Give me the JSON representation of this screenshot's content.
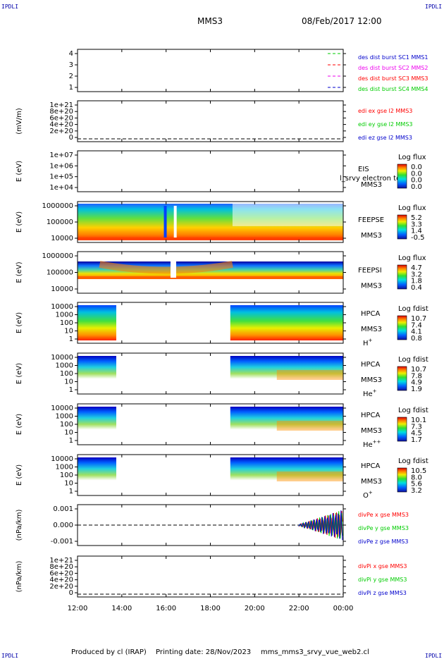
{
  "header": {
    "corner_left": "IPDLI",
    "corner_right": "IPDLI",
    "spacecraft": "MMS3",
    "datetime": "08/Feb/2017 12:00"
  },
  "footer": {
    "produced_by": "Produced by cl (IRAP)",
    "printing_date": "Printing date: 28/Nov/2023",
    "filename": "mms_mms3_srvy_vue_web2.cl",
    "corner_left": "IPDLI",
    "corner_right": "IPDLI"
  },
  "colors": {
    "red": "#ff0000",
    "green": "#00cc00",
    "blue": "#0000cc",
    "magenta": "#ee00ee",
    "orange": "#ff8800"
  },
  "chart_data": {
    "type": "multi-panel time series / spectrogram stack",
    "x": {
      "range": [
        "12:00",
        "00:00"
      ],
      "tick_labels": [
        "12:00",
        "14:00",
        "16:00",
        "18:00",
        "20:00",
        "22:00",
        "00:00"
      ]
    },
    "panels": [
      {
        "type": "line",
        "ylabel": "",
        "ytick_labels": [
          "4",
          "3",
          "2",
          "1"
        ],
        "legend": [
          {
            "label": "des dist burst SC1 MMS1",
            "color": "#0000cc"
          },
          {
            "label": "des dist burst SC2 MMS2",
            "color": "#ee00ee"
          },
          {
            "label": "des dist burst SC3 MMS3",
            "color": "#ff0000"
          },
          {
            "label": "des dist burst SC4 MMS4",
            "color": "#00cc00"
          }
        ]
      },
      {
        "type": "line",
        "ylabel": "(mV/m)",
        "ytick_labels": [
          "1e+21",
          "8e+20",
          "6e+20",
          "4e+20",
          "2e+20",
          "0"
        ],
        "legend": [
          {
            "label": "edi ex gse l2 MMS3",
            "color": "#ff0000"
          },
          {
            "label": "edi ey gse l2 MMS3",
            "color": "#00cc00"
          },
          {
            "label": "edi ez gse l2 MMS3",
            "color": "#0000cc"
          }
        ]
      },
      {
        "type": "heatmap",
        "ylabel": "E (eV)",
        "ytick_labels": [
          "1e+07",
          "1e+06",
          "1e+05",
          "1e+04"
        ],
        "instrument": "EIS",
        "spacecraft": "MMS3",
        "overlay_text": "l_srvy electron to",
        "colorbar": {
          "title": "Log flux",
          "ticks": [
            "0.0",
            "0.0",
            "0.0",
            "0.0"
          ]
        }
      },
      {
        "type": "heatmap",
        "ylabel": "E (eV)",
        "ytick_labels": [
          "1000000",
          "100000",
          "10000"
        ],
        "instrument": "FEEPSE",
        "spacecraft": "MMS3",
        "colorbar": {
          "title": "Log flux",
          "ticks": [
            "5.2",
            "3.3",
            "1.4",
            "-0.5"
          ]
        }
      },
      {
        "type": "heatmap",
        "ylabel": "E (eV)",
        "ytick_labels": [
          "1000000",
          "100000",
          "10000"
        ],
        "instrument": "FEEPSI",
        "spacecraft": "MMS3",
        "colorbar": {
          "title": "Log flux",
          "ticks": [
            "4.7",
            "3.2",
            "1.8",
            "0.4"
          ]
        }
      },
      {
        "type": "heatmap",
        "ylabel": "E (eV)",
        "ytick_labels": [
          "10000",
          "1000",
          "100",
          "10",
          "1"
        ],
        "instrument": "HPCA",
        "spacecraft": "MMS3",
        "species": "H",
        "species_charge": "+",
        "colorbar": {
          "title": "Log fdist",
          "ticks": [
            "10.7",
            "7.4",
            "4.1",
            "0.8"
          ]
        }
      },
      {
        "type": "heatmap",
        "ylabel": "E (eV)",
        "ytick_labels": [
          "10000",
          "1000",
          "100",
          "10",
          "1"
        ],
        "instrument": "HPCA",
        "spacecraft": "MMS3",
        "species": "He",
        "species_charge": "+",
        "colorbar": {
          "title": "Log fdist",
          "ticks": [
            "10.7",
            "7.8",
            "4.9",
            "1.9"
          ]
        }
      },
      {
        "type": "heatmap",
        "ylabel": "E (eV)",
        "ytick_labels": [
          "10000",
          "1000",
          "100",
          "10",
          "1"
        ],
        "instrument": "HPCA",
        "spacecraft": "MMS3",
        "species": "He",
        "species_charge": "++",
        "colorbar": {
          "title": "Log fdist",
          "ticks": [
            "10.1",
            "7.3",
            "4.5",
            "1.7"
          ]
        }
      },
      {
        "type": "heatmap",
        "ylabel": "E (eV)",
        "ytick_labels": [
          "10000",
          "1000",
          "100",
          "10",
          "1"
        ],
        "instrument": "HPCA",
        "spacecraft": "MMS3",
        "species": "O",
        "species_charge": "+",
        "colorbar": {
          "title": "Log fdist",
          "ticks": [
            "10.5",
            "8.0",
            "5.6",
            "3.2"
          ]
        }
      },
      {
        "type": "line",
        "ylabel": "(nPa/km)",
        "ytick_labels": [
          "0.001",
          "0.000",
          "-0.001"
        ],
        "legend": [
          {
            "label": "divPe x gse MMS3",
            "color": "#ff0000"
          },
          {
            "label": "divPe y gse MMS3",
            "color": "#00cc00"
          },
          {
            "label": "divPe z gse MMS3",
            "color": "#0000cc"
          }
        ]
      },
      {
        "type": "line",
        "ylabel": "(nPa/km)",
        "ytick_labels": [
          "1e+21",
          "8e+20",
          "6e+20",
          "4e+20",
          "2e+20",
          "0"
        ],
        "legend": [
          {
            "label": "divPi x gse MMS3",
            "color": "#ff0000"
          },
          {
            "label": "divPi y gse MMS3",
            "color": "#00cc00"
          },
          {
            "label": "divPi z gse MMS3",
            "color": "#0000cc"
          }
        ]
      }
    ]
  }
}
